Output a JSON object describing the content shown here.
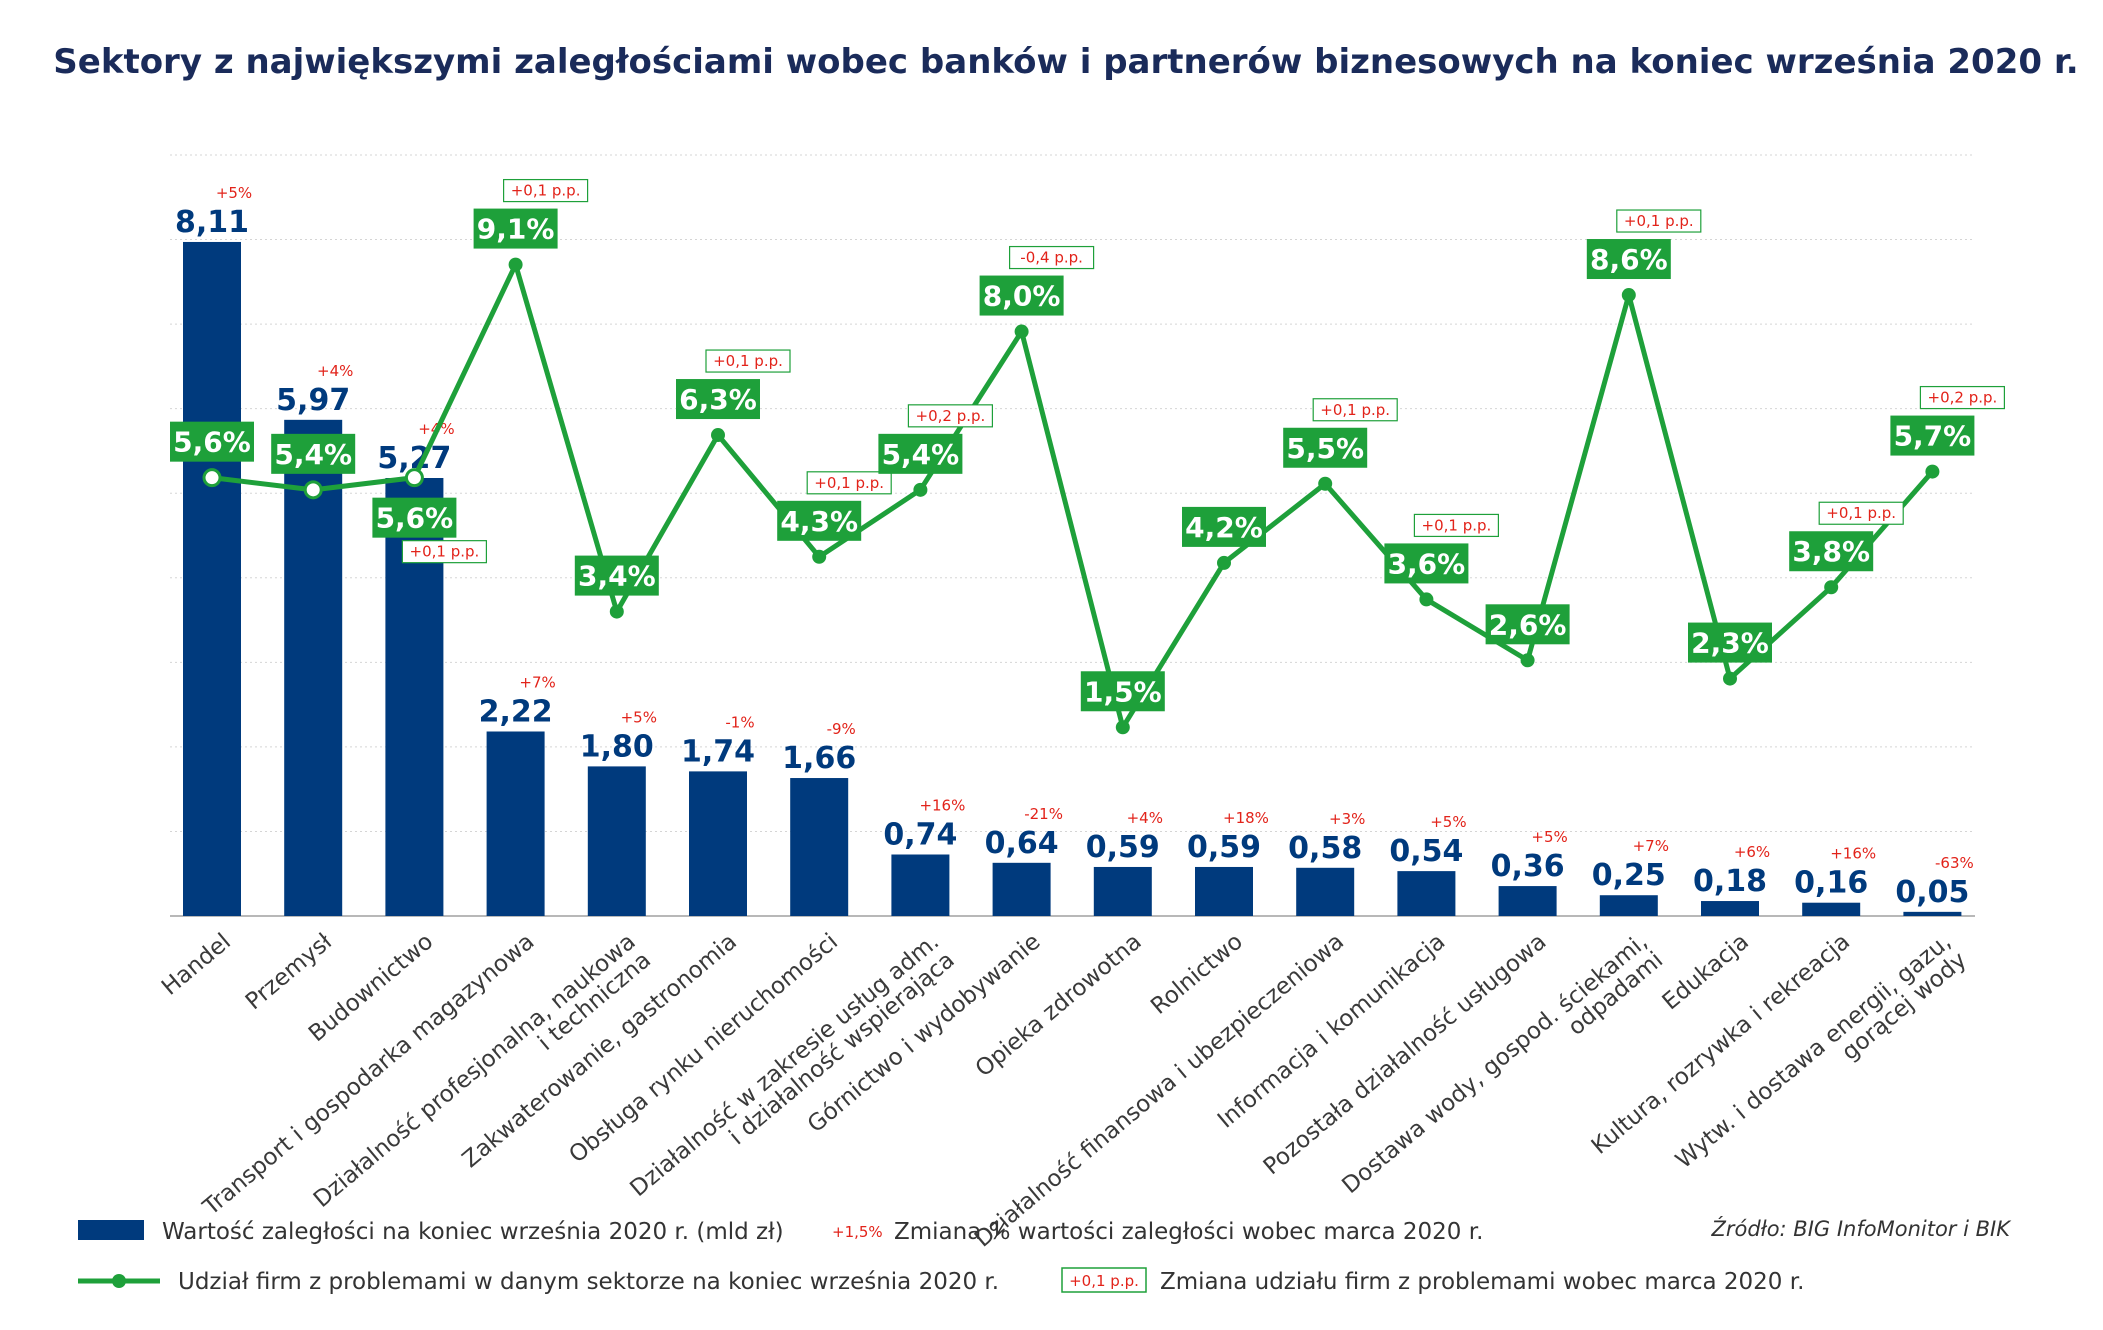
{
  "chart_data": {
    "type": "bar",
    "title": "Sektory z największymi zaległościami wobec banków i partnerów biznesowych na koniec września 2020 r.",
    "categories": [
      "Handel",
      "Przemysł",
      "Budownictwo",
      "Transport i gospodarka magazynowa",
      "Działalność profesjonalna, naukowa\ni techniczna",
      "Zakwaterowanie, gastronomia",
      "Obsługa rynku nieruchomości",
      "Działalność w zakresie usług adm.\ni działalność wspierająca",
      "Górnictwo i wydobywanie",
      "Opieka zdrowotna",
      "Rolnictwo",
      "Działalność finansowa i ubezpieczeniowa",
      "Informacja i komunikacja",
      "Pozostała działalność usługowa",
      "Dostawa wody, gospod. ściekami,\nodpadami",
      "Edukacja",
      "Kultura, rozrywka i rekreacja",
      "Wytw. i dostawa energii, gazu,\ngorącej wody"
    ],
    "series": [
      {
        "type": "bar",
        "color": "#003a7d",
        "values": [
          8.11,
          5.97,
          5.27,
          2.22,
          1.8,
          1.74,
          1.66,
          0.74,
          0.64,
          0.59,
          0.59,
          0.58,
          0.54,
          0.36,
          0.25,
          0.18,
          0.16,
          0.05
        ],
        "labels": [
          "8,11",
          "5,97",
          "5,27",
          "2,22",
          "1,80",
          "1,74",
          "1,66",
          "0,74",
          "0,64",
          "0,59",
          "0,59",
          "0,58",
          "0,54",
          "0,36",
          "0,25",
          "0,18",
          "0,16",
          "0,05"
        ],
        "changes": [
          "+5%",
          "+4%",
          "+4%",
          "+7%",
          "+5%",
          "-1%",
          "-9%",
          "+16%",
          "-21%",
          "+4%",
          "+18%",
          "+3%",
          "+5%",
          "+5%",
          "+7%",
          "+6%",
          "+16%",
          "-63%"
        ]
      },
      {
        "type": "line",
        "color": "#1ea03a",
        "values": [
          5.6,
          5.4,
          5.6,
          9.1,
          3.4,
          6.3,
          4.3,
          5.4,
          8.0,
          1.5,
          4.2,
          5.5,
          3.6,
          2.6,
          8.6,
          2.3,
          3.8,
          5.7
        ],
        "labels": [
          "5,6%",
          "5,4%",
          "5,6%",
          "9,1%",
          "3,4%",
          "6,3%",
          "4,3%",
          "5,4%",
          "8,0%",
          "1,5%",
          "4,2%",
          "5,5%",
          "3,6%",
          "2,6%",
          "8,6%",
          "2,3%",
          "3,8%",
          "5,7%"
        ],
        "changes": [
          "",
          "",
          "+0,1 p.p.",
          "+0,1 p.p.",
          "",
          "+0,1 p.p.",
          "+0,1 p.p.",
          "+0,2 p.p.",
          "-0,4 p.p.",
          "",
          "",
          "+0,1 p.p.",
          "+0,1 p.p.",
          "",
          "+0,1 p.p.",
          "",
          "+0,1 p.p.",
          "+0,2 p.p."
        ]
      }
    ],
    "bar_ylim": [
      0,
      9
    ],
    "line_ylim": [
      -1.6,
      10.9
    ],
    "grid": true
  },
  "legend": {
    "bar_text": "Wartość zaległości na koniec września 2020 r. (mld zł)",
    "bar_change_sample": "+1,5%",
    "bar_change_text": "Zmiana % wartości zaległości wobec marca 2020 r.",
    "line_text": "Udział firm z problemami w danym sektorze na koniec września 2020 r.",
    "line_change_sample": "+0,1 p.p.",
    "line_change_text": "Zmiana udziału firm z problemami wobec marca 2020 r."
  },
  "source": "Źródło: BIG InfoMonitor i BIK"
}
